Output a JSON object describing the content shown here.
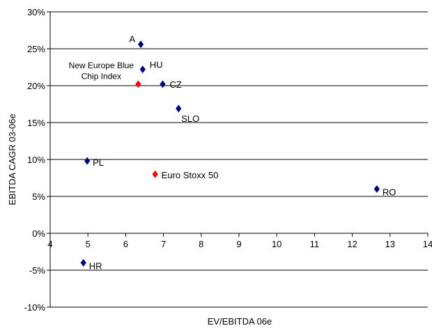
{
  "chart_data": {
    "type": "scatter",
    "title": "",
    "xlabel": "EV/EBITDA 06e",
    "ylabel": "EBITDA CAGR 03-06e",
    "xlim": [
      4,
      14
    ],
    "ylim": [
      -10,
      30
    ],
    "x_ticks": [
      "4",
      "5",
      "6",
      "7",
      "8",
      "9",
      "10",
      "11",
      "12",
      "13",
      "14"
    ],
    "y_ticks": [
      "-10%",
      "-5%",
      "0%",
      "5%",
      "10%",
      "15%",
      "20%",
      "25%",
      "30%"
    ],
    "grid": "horizontal",
    "legend": "none",
    "marker": "diamond",
    "colors": {
      "country": "#000080",
      "index": "#ff0000"
    },
    "points": [
      {
        "label": "A",
        "x": 6.4,
        "y": 25.6,
        "group": "country"
      },
      {
        "label": "HU",
        "x": 6.45,
        "y": 22.2,
        "group": "country"
      },
      {
        "label": "CZ",
        "x": 6.98,
        "y": 20.2,
        "group": "country"
      },
      {
        "label": "SLO",
        "x": 7.4,
        "y": 16.9,
        "group": "country"
      },
      {
        "label": "PL",
        "x": 4.98,
        "y": 9.8,
        "group": "country"
      },
      {
        "label": "RO",
        "x": 12.65,
        "y": 6.0,
        "group": "country"
      },
      {
        "label": "HR",
        "x": 4.88,
        "y": -4.0,
        "group": "country"
      },
      {
        "label": "New Europe Blue Chip Index",
        "label_lines": [
          "New Europe Blue",
          "Chip Index"
        ],
        "x": 6.33,
        "y": 20.2,
        "group": "index"
      },
      {
        "label": "Euro Stoxx 50",
        "x": 6.78,
        "y": 8.0,
        "group": "index"
      }
    ]
  }
}
